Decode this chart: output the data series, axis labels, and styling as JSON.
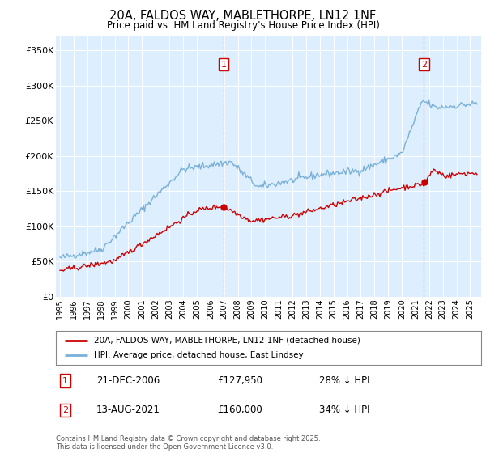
{
  "title": "20A, FALDOS WAY, MABLETHORPE, LN12 1NF",
  "subtitle": "Price paid vs. HM Land Registry's House Price Index (HPI)",
  "bg_color": "#ffffff",
  "plot_bg_color": "#ddeeff",
  "ylim": [
    0,
    370000
  ],
  "yticks": [
    0,
    50000,
    100000,
    150000,
    200000,
    250000,
    300000,
    350000
  ],
  "ytick_labels": [
    "£0",
    "£50K",
    "£100K",
    "£150K",
    "£200K",
    "£250K",
    "£300K",
    "£350K"
  ],
  "hpi_color": "#7ab0d8",
  "price_color": "#cc0000",
  "marker1_year": 2006.97,
  "marker2_year": 2021.62,
  "marker1_date": "21-DEC-2006",
  "marker1_price": "£127,950",
  "marker1_pct": "28% ↓ HPI",
  "marker2_date": "13-AUG-2021",
  "marker2_price": "£160,000",
  "marker2_pct": "34% ↓ HPI",
  "legend_line1": "20A, FALDOS WAY, MABLETHORPE, LN12 1NF (detached house)",
  "legend_line2": "HPI: Average price, detached house, East Lindsey",
  "footnote": "Contains HM Land Registry data © Crown copyright and database right 2025.\nThis data is licensed under the Open Government Licence v3.0."
}
